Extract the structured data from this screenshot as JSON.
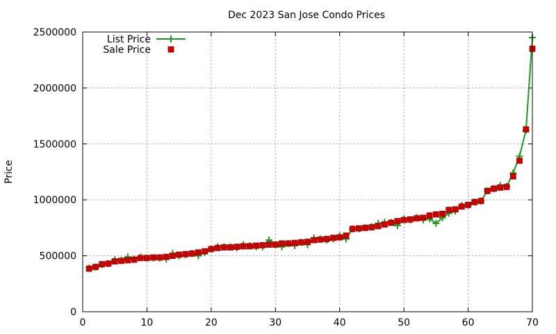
{
  "chart_data": {
    "type": "line",
    "title": "Dec 2023 San Jose Condo Prices",
    "xlabel": "",
    "ylabel": "Price",
    "xlim": [
      0,
      70
    ],
    "ylim": [
      0,
      2500000
    ],
    "xticks": [
      "0",
      "10",
      "20",
      "30",
      "40",
      "50",
      "60",
      "70"
    ],
    "yticks": [
      "0",
      "500000",
      "1000000",
      "1500000",
      "2000000",
      "2500000"
    ],
    "grid": true,
    "legend": "top-left",
    "x": [
      1,
      2,
      3,
      4,
      5,
      6,
      7,
      8,
      9,
      10,
      11,
      12,
      13,
      14,
      15,
      16,
      17,
      18,
      19,
      20,
      21,
      22,
      23,
      24,
      25,
      26,
      27,
      28,
      29,
      30,
      31,
      32,
      33,
      34,
      35,
      36,
      37,
      38,
      39,
      40,
      41,
      42,
      43,
      44,
      45,
      46,
      47,
      48,
      49,
      50,
      51,
      52,
      53,
      54,
      55,
      56,
      57,
      58,
      59,
      60,
      61,
      62,
      63,
      64,
      65,
      66,
      67,
      68,
      69,
      70
    ],
    "series": [
      {
        "name": "List Price",
        "style": "line+plus",
        "color": "#1a9a1a",
        "values": [
          390000,
          400000,
          420000,
          430000,
          465000,
          460000,
          490000,
          470000,
          490000,
          480000,
          480000,
          480000,
          470000,
          520000,
          500000,
          510000,
          520000,
          500000,
          530000,
          560000,
          580000,
          580000,
          580000,
          570000,
          600000,
          590000,
          580000,
          580000,
          640000,
          600000,
          580000,
          610000,
          590000,
          620000,
          600000,
          660000,
          650000,
          640000,
          650000,
          680000,
          650000,
          740000,
          740000,
          750000,
          760000,
          790000,
          800000,
          800000,
          770000,
          830000,
          820000,
          840000,
          820000,
          830000,
          790000,
          840000,
          880000,
          900000,
          950000,
          950000,
          980000,
          990000,
          1080000,
          1100000,
          1130000,
          1120000,
          1240000,
          1390000,
          1620000,
          2450000
        ]
      },
      {
        "name": "Sale Price",
        "style": "square",
        "color": "#cc0000",
        "values": [
          385000,
          400000,
          425000,
          430000,
          450000,
          455000,
          460000,
          465000,
          480000,
          480000,
          485000,
          485000,
          490000,
          500000,
          510000,
          515000,
          520000,
          530000,
          540000,
          560000,
          570000,
          575000,
          575000,
          580000,
          585000,
          585000,
          590000,
          595000,
          600000,
          600000,
          610000,
          610000,
          615000,
          620000,
          625000,
          640000,
          645000,
          650000,
          660000,
          665000,
          680000,
          740000,
          745000,
          750000,
          755000,
          765000,
          780000,
          795000,
          810000,
          820000,
          825000,
          835000,
          840000,
          860000,
          870000,
          875000,
          910000,
          915000,
          940000,
          955000,
          980000,
          990000,
          1080000,
          1100000,
          1110000,
          1115000,
          1210000,
          1350000,
          1630000,
          2350000
        ]
      }
    ]
  }
}
